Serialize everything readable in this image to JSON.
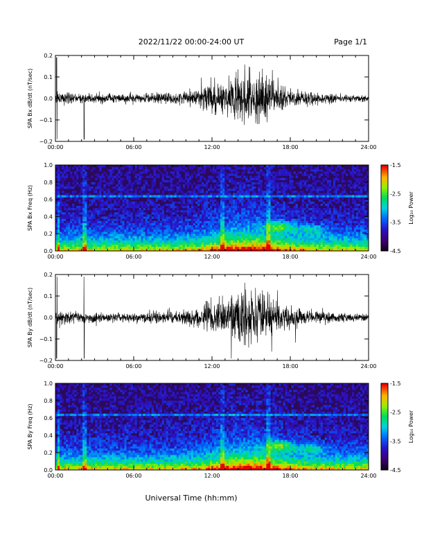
{
  "header": {
    "title": "2022/11/22  00:00-24:00 UT",
    "page": "Page 1/1"
  },
  "xaxis_label": "Universal Time (hh:mm)",
  "colorbar": {
    "label": "Log₁₀ Power",
    "range": [
      -4.5,
      -1.5
    ],
    "ticks": [
      "-1.5",
      "-2.5",
      "-3.5",
      "-4.5"
    ]
  },
  "chart_data": [
    {
      "type": "line",
      "name": "panel-bx-waveform",
      "ylabel": "SPA Bx dB/dt (nT/sec)",
      "xlim": [
        0,
        24
      ],
      "ylim": [
        -0.2,
        0.2
      ],
      "x_ticks": [
        "00:00",
        "06:00",
        "12:00",
        "18:00",
        "24:00"
      ],
      "y_ticks": [
        "0.2",
        "0.1",
        "0.0",
        "−0.1",
        "−0.2"
      ],
      "envelope_amplitude_by_hour": [
        0.05,
        0.04,
        0.04,
        0.035,
        0.035,
        0.035,
        0.035,
        0.035,
        0.04,
        0.04,
        0.05,
        0.06,
        0.14,
        0.12,
        0.2,
        0.2,
        0.2,
        0.1,
        0.07,
        0.06,
        0.05,
        0.04,
        0.03,
        0.025,
        0.025
      ]
    },
    {
      "type": "heatmap",
      "name": "panel-bx-spectrogram",
      "ylabel": "SPA Bx Freq (Hz)",
      "xlim": [
        0,
        24
      ],
      "ylim": [
        0.0,
        1.0
      ],
      "x_ticks": [
        "00:00",
        "06:00",
        "12:00",
        "18:00",
        "24:00"
      ],
      "y_ticks": [
        "1.0",
        "0.8",
        "0.6",
        "0.4",
        "0.2",
        "0.0"
      ],
      "zlim": [
        -4.5,
        -1.5
      ]
    },
    {
      "type": "line",
      "name": "panel-by-waveform",
      "ylabel": "SPA By dB/dt (nT/sec)",
      "xlim": [
        0,
        24
      ],
      "ylim": [
        -0.2,
        0.2
      ],
      "x_ticks": [
        "00:00",
        "06:00",
        "12:00",
        "18:00",
        "24:00"
      ],
      "y_ticks": [
        "0.2",
        "0.1",
        "0.0",
        "−0.1",
        "−0.2"
      ],
      "envelope_amplitude_by_hour": [
        0.05,
        0.045,
        0.04,
        0.04,
        0.035,
        0.035,
        0.04,
        0.045,
        0.05,
        0.05,
        0.06,
        0.07,
        0.13,
        0.12,
        0.2,
        0.2,
        0.2,
        0.12,
        0.07,
        0.06,
        0.05,
        0.04,
        0.035,
        0.03,
        0.03
      ]
    },
    {
      "type": "heatmap",
      "name": "panel-by-spectrogram",
      "ylabel": "SPA By Freq (Hz)",
      "xlim": [
        0,
        24
      ],
      "ylim": [
        0.0,
        1.0
      ],
      "x_ticks": [
        "00:00",
        "06:00",
        "12:00",
        "18:00",
        "24:00"
      ],
      "y_ticks": [
        "1.0",
        "0.8",
        "0.6",
        "0.4",
        "0.2",
        "0.0"
      ],
      "zlim": [
        -4.5,
        -1.5
      ]
    }
  ],
  "colors": {
    "waveform": "#000000",
    "spectrogram_background": "#2b0a5c"
  }
}
